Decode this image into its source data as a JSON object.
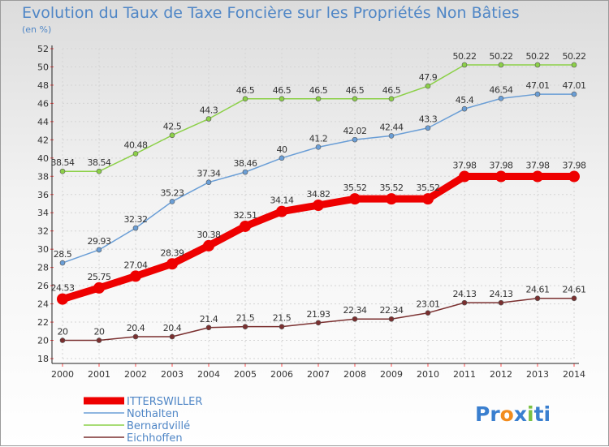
{
  "title": "Evolution du Taux de Taxe Foncière sur les Propriétés Non Bâties",
  "subtitle": "(en %)",
  "brand": {
    "text_parts": [
      "Pr",
      "o",
      "x",
      "i",
      "ti"
    ],
    "colors": [
      "#3a7fcf",
      "#f28c1e",
      "#3a7fcf",
      "#7ac143",
      "#3a7fcf"
    ]
  },
  "chart_data": {
    "type": "line",
    "title": "Evolution du Taux de Taxe Foncière sur les Propriétés Non Bâties",
    "ylabel": "(en %)",
    "xlabel": "",
    "x": [
      "2000",
      "2001",
      "2002",
      "2003",
      "2004",
      "2005",
      "2006",
      "2007",
      "2008",
      "2009",
      "2010",
      "2011",
      "2012",
      "2013",
      "2014"
    ],
    "ylim": [
      18,
      52
    ],
    "yticks": [
      18,
      20,
      22,
      24,
      26,
      28,
      30,
      32,
      34,
      36,
      38,
      40,
      42,
      44,
      46,
      48,
      50,
      52
    ],
    "grid": true,
    "legend_position": "bottom-left",
    "series": [
      {
        "name": "ITTERSWILLER",
        "color": "#ee0000",
        "width": 9,
        "marker": 7,
        "values": [
          24.53,
          25.75,
          27.04,
          28.39,
          30.38,
          32.51,
          34.14,
          34.82,
          35.52,
          35.52,
          35.52,
          37.98,
          37.98,
          37.98,
          37.98
        ],
        "labels": [
          "24.53",
          "25.75",
          "27.04",
          "28.39",
          "30.38",
          "32.51",
          "34.14",
          "34.82",
          "35.52",
          "35.52",
          "35.52",
          "37.98",
          "37.98",
          "37.98",
          "37.98"
        ]
      },
      {
        "name": "Nothalten",
        "color": "#6a9ed6",
        "width": 1.5,
        "marker": 3,
        "values": [
          28.5,
          29.93,
          32.32,
          35.23,
          37.34,
          38.46,
          40,
          41.2,
          42.02,
          42.44,
          43.3,
          45.4,
          46.54,
          47.01,
          47.01
        ],
        "labels": [
          "28.5",
          "29.93",
          "32.32",
          "35.23",
          "37.34",
          "38.46",
          "40",
          "41.2",
          "42.02",
          "42.44",
          "43.3",
          "45.4",
          "46.54",
          "47.01",
          "47.01"
        ]
      },
      {
        "name": "Bernardvillé",
        "color": "#8cd048",
        "width": 1.5,
        "marker": 3,
        "values": [
          38.54,
          38.54,
          40.48,
          42.5,
          44.3,
          46.5,
          46.5,
          46.5,
          46.5,
          46.5,
          47.9,
          50.22,
          50.22,
          50.22,
          50.22
        ],
        "labels": [
          "38.54",
          "38.54",
          "40.48",
          "42.5",
          "44.3",
          "46.5",
          "46.5",
          "46.5",
          "46.5",
          "46.5",
          "47.9",
          "50.22",
          "50.22",
          "50.22",
          "50.22"
        ]
      },
      {
        "name": "Eichhoffen",
        "color": "#7a2f2f",
        "width": 1.5,
        "marker": 3,
        "values": [
          20,
          20,
          20.4,
          20.4,
          21.4,
          21.5,
          21.5,
          21.93,
          22.34,
          22.34,
          23.01,
          24.13,
          24.13,
          24.61,
          24.61
        ],
        "labels": [
          "20",
          "20",
          "20.4",
          "20.4",
          "21.4",
          "21.5",
          "21.5",
          "21.93",
          "22.34",
          "22.34",
          "23.01",
          "24.13",
          "24.13",
          "24.61",
          "24.61"
        ]
      }
    ]
  }
}
